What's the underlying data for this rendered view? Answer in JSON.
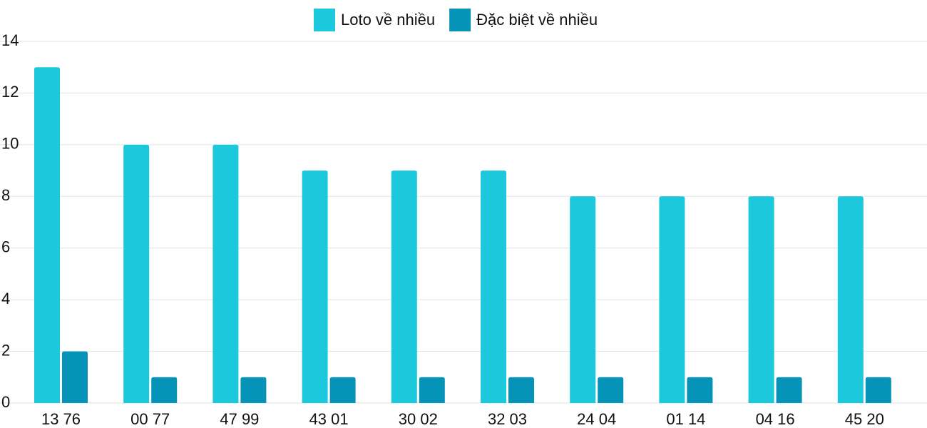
{
  "chart_data": {
    "type": "bar",
    "categories": [
      "13 76",
      "00 77",
      "47 99",
      "43 01",
      "30 02",
      "32 03",
      "24 04",
      "01 14",
      "04 16",
      "45 20"
    ],
    "series": [
      {
        "name": "Loto về nhiều",
        "color": "#1bc8dc",
        "values": [
          13,
          10,
          10,
          9,
          9,
          9,
          8,
          8,
          8,
          8
        ]
      },
      {
        "name": "Đặc biệt về nhiều",
        "color": "#0593b8",
        "values": [
          2,
          1,
          1,
          1,
          1,
          1,
          1,
          1,
          1,
          1
        ]
      }
    ],
    "ylim": [
      0,
      14
    ],
    "yticks": [
      0,
      2,
      4,
      6,
      8,
      10,
      12,
      14
    ],
    "grid": true,
    "legend": "top"
  }
}
